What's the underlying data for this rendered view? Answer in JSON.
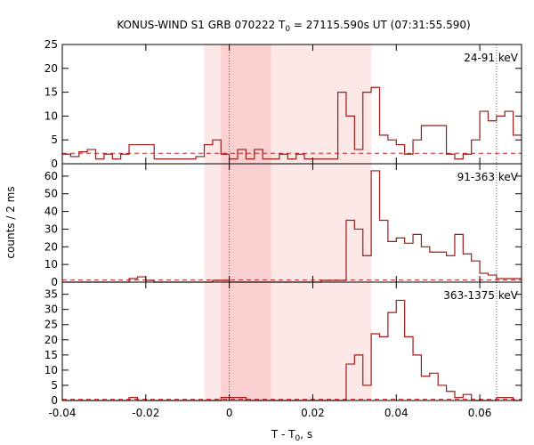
{
  "chart_data": {
    "type": "line",
    "title_main": "KONUS-WIND S1 GRB 070222 T",
    "title_sub": "0",
    "title_rest": " = 27115.590s UT (07:31:55.590)",
    "xlabel_main": "T - T",
    "xlabel_sub": "0",
    "xlabel_rest": ", s",
    "ylabel": "counts / 2 ms",
    "xlim": [
      -0.04,
      0.07
    ],
    "xticks": [
      -0.04,
      -0.02,
      0,
      0.02,
      0.04,
      0.06
    ],
    "xtick_labels": [
      "-0.04",
      "-0.02",
      "0",
      "0.02",
      "0.04",
      "0.06"
    ],
    "shading": {
      "outer_interval": [
        -0.006,
        0.034
      ],
      "inner_interval": [
        -0.002,
        0.01
      ],
      "outer_color": "#fde8e8",
      "inner_color": "#fbd0d0"
    },
    "vertical_dotted_lines": [
      0,
      0.064
    ],
    "line_color": "#a01818",
    "dashed_color": "#c02020",
    "bin_width": 0.002,
    "x_start": -0.04,
    "panels": [
      {
        "band": "24-91 keV",
        "ylim": [
          0,
          25
        ],
        "yticks": [
          0,
          5,
          10,
          15,
          20,
          25
        ],
        "background": 2.2,
        "values": [
          2,
          1.5,
          2.5,
          3,
          1,
          2,
          1,
          2,
          4,
          4,
          4,
          1,
          1,
          1,
          1,
          1,
          1.5,
          4,
          5,
          2,
          1,
          3,
          1,
          3,
          1,
          1,
          2,
          1,
          2,
          1,
          1,
          1,
          1,
          15,
          10,
          3,
          15,
          16,
          6,
          5,
          4,
          2,
          5,
          8,
          8,
          8,
          2,
          1,
          2,
          5,
          11,
          9,
          10,
          11,
          6,
          3,
          3,
          3,
          3,
          13,
          13,
          8,
          8,
          17,
          19,
          21,
          11,
          6,
          6,
          1,
          1,
          8,
          3,
          1,
          1,
          3,
          3,
          2,
          1,
          1,
          1,
          1,
          1,
          1,
          1,
          1,
          1,
          1,
          1,
          1,
          1,
          1,
          1,
          1,
          1,
          2,
          1,
          3,
          1,
          2,
          2,
          1,
          1,
          2,
          2,
          2,
          1,
          1,
          1,
          1
        ]
      },
      {
        "band": "91-363 keV",
        "ylim": [
          0,
          67
        ],
        "yticks": [
          0,
          10,
          20,
          30,
          40,
          50,
          60
        ],
        "background": 1.2,
        "values": [
          0,
          0,
          0,
          0,
          0,
          0,
          0,
          0,
          2,
          3,
          1,
          0,
          0,
          0,
          0,
          0,
          0,
          0,
          1,
          1,
          0,
          0,
          0,
          0,
          0,
          0,
          0,
          0,
          0,
          0,
          0,
          1,
          1,
          1,
          35,
          30,
          15,
          63,
          35,
          23,
          25,
          22,
          27,
          20,
          17,
          17,
          15,
          27,
          16,
          12,
          5,
          4,
          2,
          2,
          2,
          2,
          1,
          0,
          0,
          1,
          1,
          4,
          5,
          8,
          10,
          10,
          14,
          21,
          39,
          19,
          5,
          2,
          1,
          1,
          2,
          1,
          0,
          0,
          1,
          1,
          1,
          0,
          1,
          1,
          1,
          0,
          0,
          0,
          0,
          0,
          0,
          0,
          0,
          1,
          1,
          0,
          0,
          0,
          0,
          0,
          0,
          0,
          0,
          0,
          0,
          0,
          0,
          0,
          0,
          0
        ]
      },
      {
        "band": "363-1375 keV",
        "ylim": [
          0,
          39
        ],
        "yticks": [
          0,
          5,
          10,
          15,
          20,
          25,
          30,
          35
        ],
        "background": 0.4,
        "values": [
          0,
          0,
          0,
          0,
          0,
          0,
          0,
          0,
          0,
          0,
          0,
          0,
          0,
          0,
          0,
          0,
          0,
          0,
          0,
          0,
          0,
          0,
          0,
          0,
          0,
          0,
          0,
          0,
          0,
          0,
          0,
          0,
          0,
          0,
          0,
          0,
          0,
          0,
          0,
          0,
          0,
          0,
          0,
          0,
          0,
          0,
          0,
          0,
          0,
          0,
          0,
          0,
          0,
          0,
          0,
          0,
          0,
          0,
          0,
          0,
          0,
          0,
          0,
          0,
          0,
          0,
          0,
          0,
          0,
          0,
          0,
          0,
          0,
          0,
          0,
          0,
          0,
          0,
          0,
          0,
          0,
          0,
          0,
          0,
          0,
          0,
          0,
          0,
          0,
          0,
          0,
          0,
          0,
          0,
          0,
          0,
          0,
          0,
          0,
          0,
          0,
          0,
          0,
          0,
          0,
          0,
          0,
          0,
          0,
          0
        ]
      }
    ]
  }
}
